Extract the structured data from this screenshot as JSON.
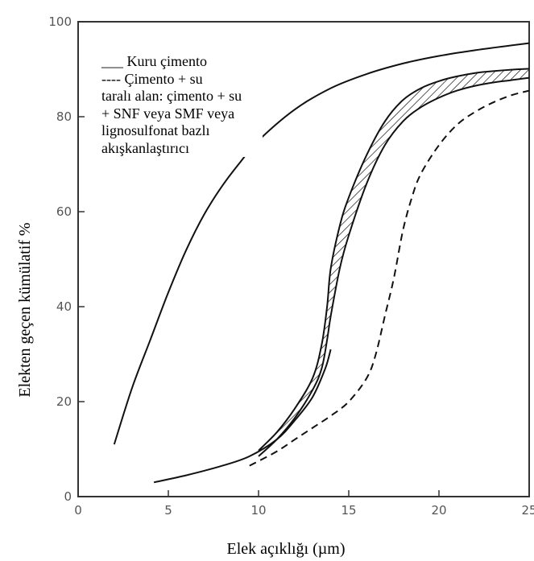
{
  "chart_data": {
    "type": "line",
    "xlabel": "Elek açıklığı (µm)",
    "ylabel": "Elekten geçen kümülatif %",
    "xlim": [
      0,
      25
    ],
    "ylim": [
      0,
      100
    ],
    "x_ticks": [
      "0",
      "5",
      "10",
      "15",
      "20",
      "25"
    ],
    "y_ticks": [
      "0",
      "20",
      "40",
      "60",
      "80",
      "100"
    ],
    "legend": [
      "___ Kuru çimento",
      "---- Çimento + su",
      "taralı alan: çimento + su",
      "+ SNF veya SMF veya",
      "lignosulfonat bazlı",
      "akışkanlaştırıcı"
    ],
    "series": [
      {
        "style": "solid",
        "x": [
          2,
          3,
          4,
          5,
          6,
          7,
          8,
          9,
          10,
          12,
          14,
          16,
          18,
          20,
          22,
          25
        ],
        "y": [
          11,
          23,
          33,
          43,
          52,
          59.5,
          65.5,
          70.5,
          75,
          81.5,
          86,
          89,
          91.2,
          92.8,
          94,
          95.5
        ]
      },
      {
        "style": "dashed",
        "x": [
          9.5,
          11,
          12,
          13,
          14,
          15,
          16,
          16.5,
          17,
          17.5,
          18,
          18.5,
          19,
          20,
          21,
          22,
          23,
          24,
          25
        ],
        "y": [
          6.5,
          9.5,
          12,
          14.5,
          17,
          20,
          25,
          30,
          38,
          46,
          56,
          63,
          68,
          74,
          78.3,
          81,
          83,
          84.5,
          85.5
        ]
      },
      {
        "style": "solid",
        "x": [
          4.2,
          6,
          8,
          9.5,
          11,
          12,
          13,
          13.7,
          14
        ],
        "y": [
          3,
          4.5,
          6.5,
          8.5,
          12,
          16,
          21,
          27,
          31
        ]
      }
    ],
    "hatched_band": {
      "x": [
        10,
        11,
        12,
        13,
        13.5,
        13.8,
        14,
        14.5,
        15,
        16,
        17,
        18,
        19,
        20,
        21,
        22,
        23,
        24,
        25
      ],
      "y_lower": [
        8.5,
        12,
        16.5,
        22.5,
        27,
        33,
        38,
        48,
        55,
        66,
        74,
        79,
        82,
        84,
        85.5,
        86.5,
        87.2,
        87.7,
        88.2
      ],
      "y_upper": [
        9.7,
        13.5,
        18.5,
        25,
        32,
        40,
        48,
        57,
        63,
        72,
        79,
        83.5,
        86,
        87.5,
        88.5,
        89.2,
        89.6,
        89.9,
        90.1
      ]
    }
  }
}
